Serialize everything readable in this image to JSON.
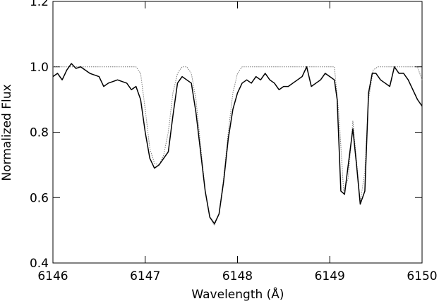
{
  "chart_data": {
    "type": "line",
    "xlabel": "Wavelength (Å)",
    "ylabel": "Normalized Flux",
    "xlim": [
      6146,
      6150
    ],
    "xticks": [
      6146,
      6147,
      6148,
      6149,
      6150
    ],
    "ylim": [
      0.4,
      1.2
    ],
    "yticks": [
      0.4,
      0.6,
      0.8,
      {
        "value": 1,
        "label": "1.0"
      },
      1.2
    ],
    "series": [
      {
        "color": "#000000",
        "line_style": "solid",
        "x": [
          6146,
          6146.05,
          6146.1,
          6146.15,
          6146.2,
          6146.25,
          6146.3,
          6146.4,
          6146.5,
          6146.55,
          6146.6,
          6146.7,
          6146.8,
          6146.85,
          6146.9,
          6146.95,
          6147.0,
          6147.05,
          6147.1,
          6147.15,
          6147.2,
          6147.25,
          6147.3,
          6147.35,
          6147.4,
          6147.45,
          6147.5,
          6147.55,
          6147.6,
          6147.65,
          6147.7,
          6147.75,
          6147.8,
          6147.85,
          6147.9,
          6147.95,
          6148.0,
          6148.05,
          6148.1,
          6148.15,
          6148.2,
          6148.25,
          6148.3,
          6148.35,
          6148.4,
          6148.45,
          6148.5,
          6148.55,
          6148.6,
          6148.65,
          6148.7,
          6148.75,
          6148.8,
          6148.85,
          6148.9,
          6148.95,
          6149.0,
          6149.05,
          6149.08,
          6149.12,
          6149.16,
          6149.2,
          6149.25,
          6149.29,
          6149.33,
          6149.38,
          6149.42,
          6149.46,
          6149.5,
          6149.55,
          6149.6,
          6149.65,
          6149.7,
          6149.75,
          6149.8,
          6149.85,
          6149.9,
          6149.95,
          6150.0
        ],
        "values": [
          0.97,
          0.98,
          0.96,
          0.99,
          1.01,
          0.995,
          1.0,
          0.98,
          0.97,
          0.94,
          0.95,
          0.96,
          0.95,
          0.93,
          0.94,
          0.9,
          0.8,
          0.72,
          0.69,
          0.7,
          0.72,
          0.74,
          0.85,
          0.95,
          0.97,
          0.96,
          0.95,
          0.86,
          0.74,
          0.62,
          0.54,
          0.52,
          0.55,
          0.65,
          0.78,
          0.87,
          0.92,
          0.95,
          0.96,
          0.95,
          0.97,
          0.96,
          0.98,
          0.96,
          0.95,
          0.93,
          0.94,
          0.94,
          0.95,
          0.96,
          0.97,
          1.0,
          0.94,
          0.95,
          0.96,
          0.98,
          0.97,
          0.96,
          0.9,
          0.62,
          0.61,
          0.7,
          0.81,
          0.7,
          0.58,
          0.62,
          0.92,
          0.98,
          0.98,
          0.96,
          0.95,
          0.94,
          1.0,
          0.98,
          0.98,
          0.96,
          0.93,
          0.9,
          0.88
        ]
      },
      {
        "color": "#777777",
        "line_style": "dotted",
        "x": [
          6146,
          6146.9,
          6146.95,
          6147.0,
          6147.05,
          6147.1,
          6147.15,
          6147.2,
          6147.25,
          6147.3,
          6147.35,
          6147.4,
          6147.45,
          6147.5,
          6147.55,
          6147.6,
          6147.65,
          6147.7,
          6147.75,
          6147.8,
          6147.85,
          6147.9,
          6147.95,
          6148.0,
          6148.05,
          6149.05,
          6149.1,
          6149.15,
          6149.2,
          6149.25,
          6149.3,
          6149.33,
          6149.38,
          6149.42,
          6149.47,
          6149.52,
          6149.95,
          6150.0
        ],
        "values": [
          1.0,
          1.0,
          0.98,
          0.87,
          0.75,
          0.705,
          0.7,
          0.73,
          0.8,
          0.92,
          0.98,
          1.0,
          1.0,
          0.98,
          0.9,
          0.76,
          0.62,
          0.54,
          0.515,
          0.55,
          0.66,
          0.8,
          0.92,
          0.98,
          1.0,
          1.0,
          0.85,
          0.62,
          0.66,
          0.835,
          0.68,
          0.585,
          0.68,
          0.9,
          0.99,
          1.0,
          1.0,
          0.96
        ]
      }
    ]
  }
}
